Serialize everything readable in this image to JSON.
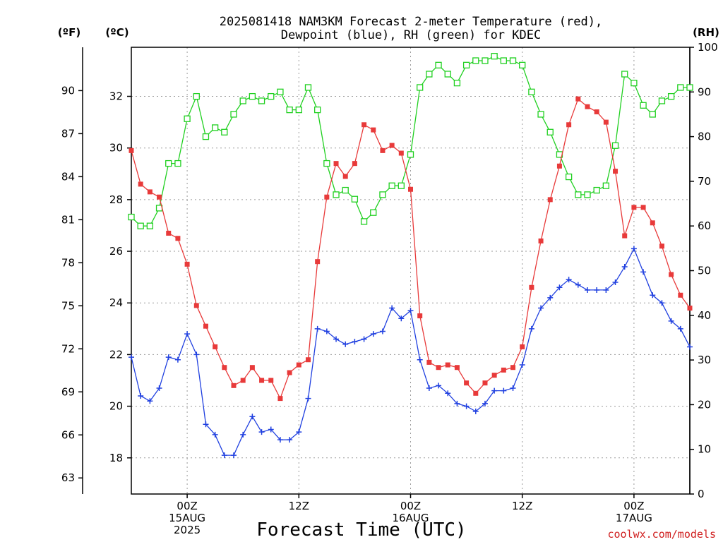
{
  "title_line1": "2025081418 NAM3KM Forecast 2-meter Temperature (red),",
  "title_line2": "Dewpoint (blue), RH (green) for KDEC",
  "credit": "coolwx.com/models",
  "colors": {
    "temp": "#e83a3a",
    "dewpoint": "#2040e0",
    "rh": "#20d020"
  },
  "chart_data": {
    "type": "line",
    "xlabel": "Forecast Time (UTC)",
    "x_hours_from_2025-08-14T18Z": [
      0,
      1,
      2,
      3,
      4,
      5,
      6,
      7,
      8,
      9,
      10,
      11,
      12,
      13,
      14,
      15,
      16,
      17,
      18,
      19,
      20,
      21,
      22,
      23,
      24,
      25,
      26,
      27,
      28,
      29,
      30,
      31,
      32,
      33,
      34,
      35,
      36,
      37,
      38,
      39,
      40,
      41,
      42,
      43,
      44,
      45,
      46,
      47,
      48,
      49,
      50,
      51,
      52,
      53,
      54,
      55,
      56,
      57,
      58,
      59,
      60
    ],
    "x_ticks": [
      {
        "hour": 6,
        "lines": [
          "00Z",
          "15AUG",
          "2025"
        ]
      },
      {
        "hour": 18,
        "lines": [
          "12Z"
        ]
      },
      {
        "hour": 30,
        "lines": [
          "00Z",
          "16AUG"
        ]
      },
      {
        "hour": 42,
        "lines": [
          "12Z"
        ]
      },
      {
        "hour": 54,
        "lines": [
          "00Z",
          "17AUG"
        ]
      }
    ],
    "left_axis_F": {
      "unit": "(ºF)",
      "ticks": [
        "90",
        "87",
        "84",
        "81",
        "78",
        "75",
        "72",
        "69",
        "66",
        "63"
      ]
    },
    "left_axis_C": {
      "unit": "(ºC)",
      "ticks": [
        "32",
        "30",
        "28",
        "26",
        "24",
        "22",
        "20",
        "18"
      ],
      "ylim": [
        16.6,
        33.9
      ]
    },
    "right_axis_RH": {
      "unit": "(RH)",
      "ticks": [
        "100",
        "90",
        "80",
        "70",
        "60",
        "50",
        "40",
        "30",
        "20",
        "10",
        "0"
      ],
      "ylim": [
        0,
        100
      ]
    },
    "series": [
      {
        "key": "temp",
        "axis": "C",
        "values": [
          29.9,
          28.6,
          28.3,
          28.1,
          26.7,
          26.5,
          25.5,
          23.9,
          23.1,
          22.3,
          21.5,
          20.8,
          21.0,
          21.5,
          21.0,
          21.0,
          20.3,
          21.3,
          21.6,
          21.8,
          25.6,
          28.1,
          29.4,
          28.9,
          29.4,
          30.9,
          30.7,
          29.9,
          30.1,
          29.8,
          28.4,
          23.5,
          21.7,
          21.5,
          21.6,
          21.5,
          20.9,
          20.5,
          20.9,
          21.2,
          21.4,
          21.5,
          22.3,
          24.6,
          26.4,
          28.0,
          29.3,
          30.9,
          31.9,
          31.6,
          31.4,
          31.0,
          29.1,
          26.6,
          27.7,
          27.7,
          27.1,
          26.2,
          25.1,
          24.3,
          23.8
        ]
      },
      {
        "key": "dewpoint",
        "axis": "C",
        "values": [
          21.9,
          20.4,
          20.2,
          20.7,
          21.9,
          21.8,
          22.8,
          22.0,
          19.3,
          18.9,
          18.1,
          18.1,
          18.9,
          19.6,
          19.0,
          19.1,
          18.7,
          18.7,
          19.0,
          20.3,
          23.0,
          22.9,
          22.6,
          22.4,
          22.5,
          22.6,
          22.8,
          22.9,
          23.8,
          23.4,
          23.7,
          21.8,
          20.7,
          20.8,
          20.5,
          20.1,
          20.0,
          19.8,
          20.1,
          20.6,
          20.6,
          20.7,
          21.6,
          23.0,
          23.8,
          24.2,
          24.6,
          24.9,
          24.7,
          24.5,
          24.5,
          24.5,
          24.8,
          25.4,
          26.1,
          25.2,
          24.3,
          24.0,
          23.3,
          23.0,
          22.3
        ]
      },
      {
        "key": "rh",
        "axis": "RH",
        "values": [
          62,
          60,
          60,
          64,
          74,
          74,
          84,
          89,
          80,
          82,
          81,
          85,
          88,
          89,
          88,
          89,
          90,
          86,
          86,
          91,
          86,
          74,
          67,
          68,
          66,
          61,
          63,
          67,
          69,
          69,
          76,
          91,
          94,
          96,
          94,
          92,
          96,
          97,
          97,
          98,
          97,
          97,
          96,
          90,
          85,
          81,
          76,
          71,
          67,
          67,
          68,
          69,
          78,
          94,
          92,
          87,
          85,
          88,
          89,
          91,
          91
        ]
      }
    ]
  }
}
